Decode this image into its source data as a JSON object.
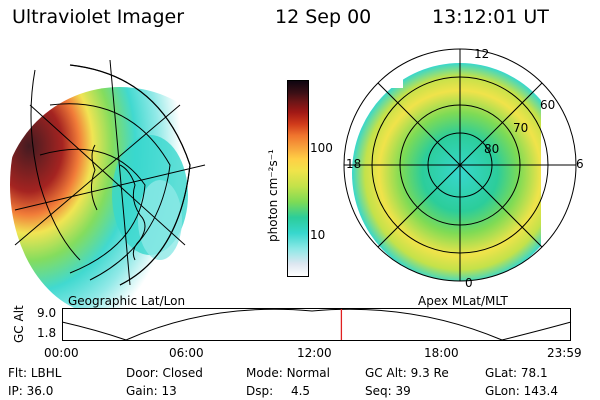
{
  "header": {
    "instrument": "Ultraviolet Imager",
    "date": "12 Sep 00",
    "time": "13:12:01 UT"
  },
  "colorbar": {
    "unit_label": "photon cm⁻²s⁻¹",
    "tick_100": "100",
    "tick_10": "10",
    "colors": [
      "#ffffff",
      "#dfe7f1",
      "#8ce8e6",
      "#37d7cd",
      "#2ccd9a",
      "#7edb55",
      "#c3e24a",
      "#f0e34a",
      "#ffcf45",
      "#f7a23c",
      "#f0752e",
      "#d03a1a",
      "#a01815",
      "#701617",
      "#3a0f15",
      "#0e0510"
    ]
  },
  "left_map": {
    "label": "Geographic Lat/Lon"
  },
  "right_map": {
    "label": "Apex MLat/MLT",
    "mlt_12": "12",
    "mlt_18": "18",
    "mlt_6": "6",
    "mlt_0": "0",
    "lat_60": "60",
    "lat_70": "70",
    "lat_80": "80"
  },
  "altitude_plot": {
    "ylabel": "GC Alt",
    "y_top": "9.0",
    "y_bottom": "1.8",
    "x_ticks": [
      "00:00",
      "06:00",
      "12:00",
      "18:00",
      "23:59"
    ],
    "current_time_fraction": 0.549,
    "marker_color": "#e02020"
  },
  "info": {
    "flt_label": "Flt:",
    "flt_value": "LBHL",
    "ip_label": "IP:",
    "ip_value": "36.0",
    "door_label": "Door:",
    "door_value": "Closed",
    "gain_label": "Gain:",
    "gain_value": "13",
    "mode_label": "Mode:",
    "mode_value": "Normal",
    "dsp_label": "Dsp:",
    "dsp_value": "4.5",
    "gcalt_label": "GC Alt:",
    "gcalt_value": "9.3 Re",
    "seq_label": "Seq:",
    "seq_value": "39",
    "glat_label": "GLat:",
    "glat_value": "78.1",
    "glon_label": "GLon:",
    "glon_value": "143.4"
  }
}
